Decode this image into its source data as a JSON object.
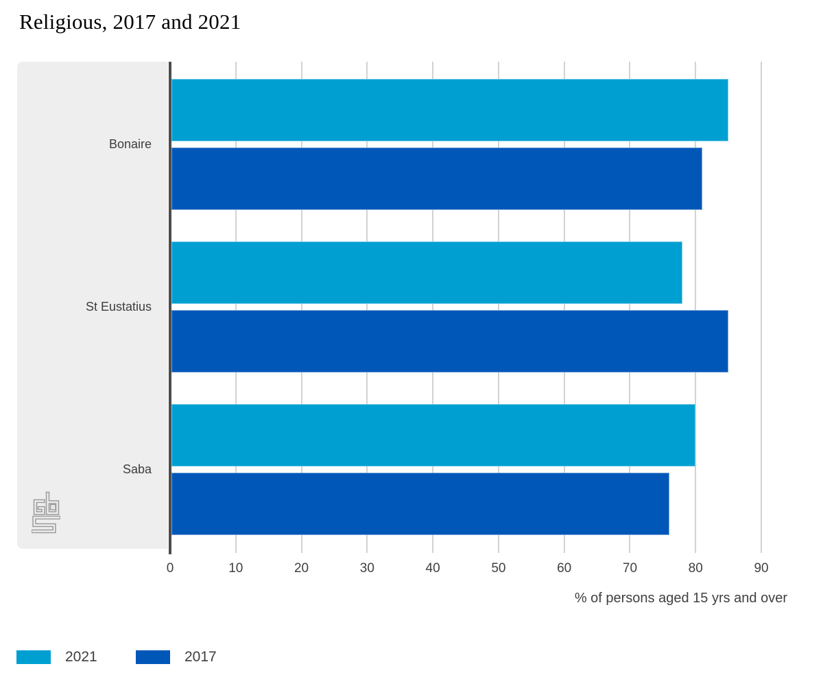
{
  "title": "Religious, 2017 and 2021",
  "chart_data": {
    "type": "bar",
    "orientation": "horizontal",
    "title": "Religious, 2017 and 2021",
    "categories": [
      "Bonaire",
      "St Eustatius",
      "Saba"
    ],
    "series": [
      {
        "name": "2021",
        "color": "#009fd2",
        "values": [
          85,
          78,
          80
        ]
      },
      {
        "name": "2017",
        "color": "#0057b8",
        "values": [
          81,
          85,
          76
        ]
      }
    ],
    "xlabel": "% of persons aged 15 yrs and over",
    "ylabel": "",
    "xlim": [
      0,
      90
    ],
    "xticks": [
      "0",
      "10",
      "20",
      "30",
      "40",
      "50",
      "60",
      "70",
      "80",
      "90"
    ],
    "grid": true,
    "legend_position": "bottom-left"
  },
  "logo": {
    "name": "CBS (Statistics Netherlands) logo"
  },
  "colors": {
    "series_2021": "#009fd2",
    "series_2017": "#0057b8",
    "panel_gray": "#eeeeee",
    "axis_gray": "#4d4d4d",
    "grid_gray": "#d2d2d2",
    "text_gray": "#404040",
    "logo_gray": "#9b9b9b"
  }
}
